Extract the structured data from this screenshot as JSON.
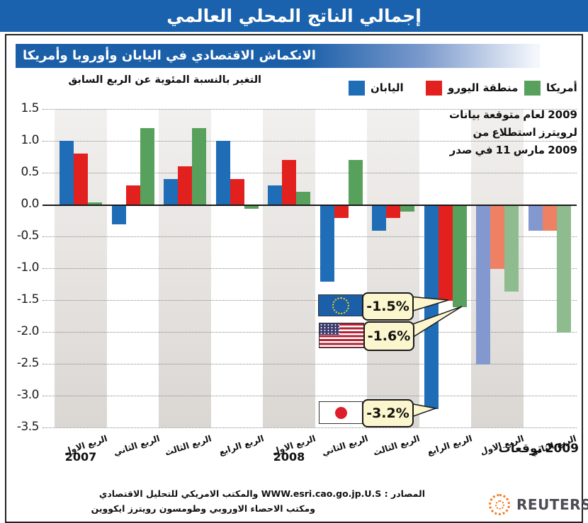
{
  "title": "إجمالي الناتج المحلي العالمي",
  "subtitle": "الانكماش الاقتصادي في اليابان وأوروبا وأمريكا",
  "axis_note": "التغير بالنسبة المئوية عن الربع السابق",
  "legend": {
    "japan": {
      "label": "اليابان",
      "color": "#1f6db6"
    },
    "eurozone": {
      "label": "منطقة اليورو",
      "color": "#e2211f"
    },
    "america": {
      "label": "أمريكا",
      "color": "#58a15c"
    }
  },
  "forecast_note": {
    "line1": "بيانات متوقعة لعام 2009",
    "line2": "من استطلاع لرويترز",
    "line3": "صدر في 11 مارس 2009"
  },
  "callouts": [
    {
      "region": "eurozone",
      "flag": "eu-flag",
      "value": "-1.5%"
    },
    {
      "region": "usa",
      "flag": "us-flag",
      "value": "-1.6%"
    },
    {
      "region": "japan",
      "flag": "japan-flag",
      "value": "-3.2%"
    }
  ],
  "chart_data": {
    "type": "bar",
    "title": "إجمالي الناتج المحلي العالمي",
    "ylabel": "التغير بالنسبة المئوية عن الربع السابق",
    "ylim": [
      -3.5,
      1.5
    ],
    "ytick_step": 0.5,
    "grid": "dotted horizontal",
    "categories": [
      "الربع الاول",
      "الربع الثاني",
      "الربع الثالث",
      "الربع الرابع",
      "الربع الاول",
      "الربع الثاني",
      "الربع الثالث",
      "الربع الرابع",
      "الربع الاول",
      "الربع الثاني"
    ],
    "year_labels": {
      "y2007": "2007",
      "y2008": "2008",
      "y2009": "توقعات 2009"
    },
    "forecast_slots": [
      8,
      9
    ],
    "series": [
      {
        "name": "اليابان",
        "color": "#1f6db6",
        "forecast_color": "#8398cf",
        "values": [
          1.0,
          -0.3,
          0.4,
          1.0,
          0.3,
          -1.2,
          -0.4,
          -3.2,
          -2.5,
          -0.4
        ]
      },
      {
        "name": "منطقة اليورو",
        "color": "#e2211f",
        "forecast_color": "#ee8164",
        "values": [
          0.8,
          0.3,
          0.6,
          0.4,
          0.7,
          -0.2,
          -0.2,
          -1.5,
          -1.0,
          -0.4
        ]
      },
      {
        "name": "أمريكا",
        "color": "#58a15c",
        "forecast_color": "#8ebc8e",
        "values": [
          0.03,
          1.2,
          1.2,
          -0.05,
          0.2,
          0.7,
          -0.1,
          -1.6,
          -1.35,
          -2.0
        ]
      }
    ]
  },
  "footer": {
    "sources_line1": "المصادر : WWW.esri.cao.go.jp.U.S والمكتب الامريكي للتحليل الاقتصادي",
    "sources_line2": "ومكتب الاحصاء الاوروبي وطومسون رويترز ايكووين",
    "logo_text": "REUTERS"
  },
  "colors": {
    "banner_blue": "#1a62ad",
    "band_gray": "#dad7d3",
    "callout_bg": "#fbf6cd",
    "reuters_orange": "#f47b20"
  }
}
